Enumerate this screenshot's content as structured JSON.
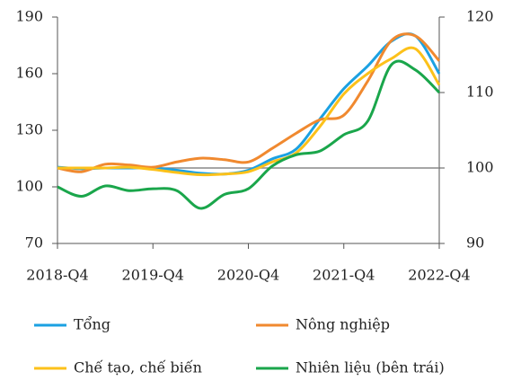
{
  "chart_data": {
    "type": "line",
    "categories": [
      "2018-Q4",
      null,
      null,
      null,
      "2019-Q4",
      null,
      null,
      null,
      "2020-Q4",
      null,
      null,
      null,
      "2021-Q4",
      null,
      null,
      null,
      "2022-Q4"
    ],
    "ylim": [
      70,
      190
    ],
    "yticks": [
      70,
      100,
      130,
      160,
      190
    ],
    "y2lim": [
      90,
      120
    ],
    "y2ticks": [
      90,
      100,
      110,
      120
    ],
    "reference_line": {
      "value": 100,
      "axis": "y2",
      "color": "#888888"
    },
    "legend": "bottom",
    "series": [
      {
        "name": "Tổng",
        "color": "#1ba1e2",
        "axis": "y2",
        "values": [
          100.1,
          99.9,
          100,
          100,
          100,
          99.7,
          99.3,
          99.2,
          99.7,
          101.2,
          102.5,
          106.5,
          110.5,
          113.5,
          116.8,
          117.5,
          112.5
        ]
      },
      {
        "name": "Nông nghiệp",
        "color": "#f0892f",
        "axis": "y2",
        "values": [
          100,
          99.5,
          100.5,
          100.4,
          100.1,
          100.8,
          101.3,
          101.1,
          100.8,
          102.6,
          104.6,
          106.4,
          107,
          111.5,
          116.9,
          117.5,
          114.2
        ]
      },
      {
        "name": "Chế tạo, chế biến",
        "color": "#fcc11a",
        "axis": "y2",
        "values": [
          100,
          100,
          100,
          100.1,
          99.8,
          99.4,
          99.1,
          99.2,
          99.5,
          100.8,
          102,
          105.5,
          109.8,
          112.5,
          114.5,
          115.8,
          111
        ]
      },
      {
        "name": "Nhiên liệu (bên trái)",
        "color": "#1aa64b",
        "values": [
          100,
          95,
          100.5,
          98,
          99,
          98,
          88.6,
          96,
          99,
          111,
          117,
          119,
          127.6,
          134.8,
          164.8,
          162,
          150
        ]
      }
    ]
  }
}
